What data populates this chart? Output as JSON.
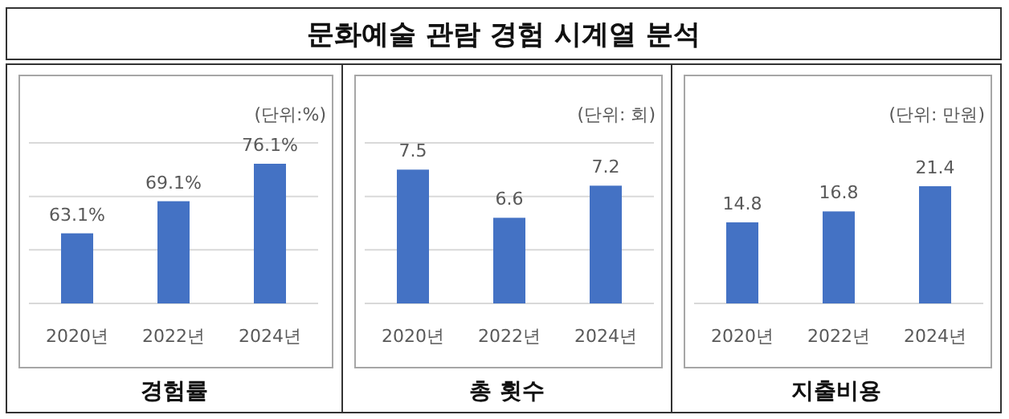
{
  "chart_data": [
    {
      "type": "other",
      "title": "문화예술 관람 경험 시계열 분석"
    },
    {
      "type": "bar",
      "title": "경험률",
      "categories": [
        "2020년",
        "2022년",
        "2024년"
      ],
      "values": [
        63.1,
        69.1,
        76.1
      ],
      "value_labels": [
        "63.1%",
        "69.1%",
        "76.1%"
      ],
      "color": "#4472c4",
      "ylim": [
        50,
        80
      ],
      "yticks": [
        {
          "value": 50,
          "label": null
        },
        {
          "value": 60,
          "label": null
        },
        {
          "value": 70,
          "label": null
        },
        {
          "value": 80,
          "label": null
        }
      ],
      "grid": "y",
      "tick_labels": "x",
      "annotations": [
        "(단위:%)"
      ]
    },
    {
      "type": "bar",
      "title": "총 횟수",
      "categories": [
        "2020년",
        "2022년",
        "2024년"
      ],
      "values": [
        7.5,
        6.6,
        7.2
      ],
      "data_labels": true,
      "color": "#4472c4",
      "ylim": [
        5,
        8
      ],
      "yticks": [
        {
          "value": 5,
          "label": null
        },
        {
          "value": 6,
          "label": null
        },
        {
          "value": 7,
          "label": null
        },
        {
          "value": 8,
          "label": null
        }
      ],
      "grid": "y",
      "tick_labels": "x",
      "annotations": [
        "(단위: 회)"
      ]
    },
    {
      "type": "bar",
      "title": "지출비용",
      "categories": [
        "2020년",
        "2022년",
        "2024년"
      ],
      "values": [
        14.8,
        16.8,
        21.4
      ],
      "data_labels": true,
      "color": "#4472c4",
      "tick_labels": "x",
      "annotations": [
        "(단위: 만원)"
      ]
    }
  ]
}
